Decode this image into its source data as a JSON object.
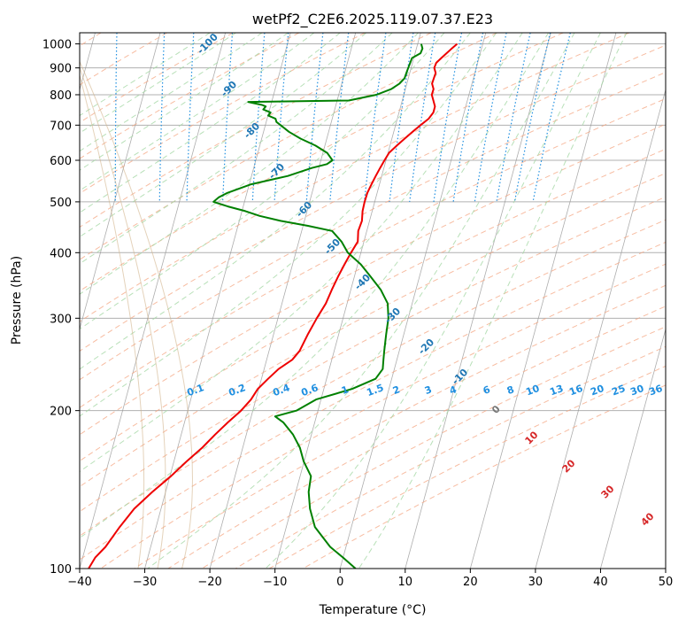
{
  "chart_data": {
    "type": "line",
    "title": "wetPf2_C2E6.2025.119.07.37.E23",
    "xlabel": "Temperature (°C)",
    "ylabel": "Pressure (hPa)",
    "xlim": [
      -40,
      50
    ],
    "ylim": [
      1050,
      100
    ],
    "y_scale": "log",
    "grid": true,
    "x_ticks": [
      -40,
      -30,
      -20,
      -10,
      0,
      10,
      20,
      30,
      40,
      50
    ],
    "y_ticks": [
      100,
      200,
      300,
      400,
      500,
      600,
      700,
      800,
      900,
      1000
    ],
    "series": [
      {
        "color": "#ee0000",
        "pressure": [
          1000,
          980,
          960,
          940,
          920,
          900,
          880,
          860,
          840,
          820,
          800,
          780,
          760,
          740,
          720,
          700,
          680,
          660,
          640,
          620,
          600,
          580,
          560,
          540,
          520,
          500,
          480,
          460,
          440,
          420,
          400,
          380,
          360,
          340,
          320,
          300,
          280,
          260,
          250,
          240,
          230,
          220,
          210,
          200,
          190,
          180,
          170,
          160,
          150,
          140,
          130,
          120,
          110,
          105,
          100
        ],
        "temperature": [
          17.5,
          16.5,
          15.5,
          14.5,
          13.5,
          13.0,
          13.0,
          12.5,
          12.0,
          12.0,
          11.5,
          11.5,
          11.5,
          11.0,
          10.0,
          8.5,
          7.0,
          5.5,
          4.0,
          2.5,
          1.5,
          0.5,
          -0.5,
          -1.5,
          -2.5,
          -3.3,
          -4.0,
          -4.5,
          -5.5,
          -6.0,
          -7.5,
          -9.0,
          -10.5,
          -12.0,
          -13.5,
          -15.5,
          -17.5,
          -19.5,
          -21.0,
          -23.5,
          -25.5,
          -27.5,
          -29.0,
          -31.0,
          -33.5,
          -36.0,
          -38.5,
          -41.5,
          -44.5,
          -48.0,
          -51.5,
          -54.5,
          -57.5,
          -59.5,
          -61.0
        ]
      },
      {
        "color": "#008000",
        "pressure": [
          1000,
          980,
          960,
          940,
          920,
          900,
          880,
          860,
          840,
          820,
          800,
          780,
          775,
          765,
          760,
          750,
          740,
          730,
          720,
          710,
          700,
          680,
          660,
          640,
          620,
          600,
          590,
          580,
          570,
          560,
          550,
          540,
          520,
          510,
          500,
          490,
          480,
          470,
          460,
          450,
          440,
          420,
          400,
          380,
          360,
          340,
          320,
          300,
          280,
          260,
          250,
          240,
          230,
          220,
          210,
          200,
          195,
          190,
          180,
          170,
          160,
          150,
          140,
          130,
          120,
          110,
          105,
          100
        ],
        "temperature": [
          12.0,
          12.0,
          11.5,
          10.0,
          9.5,
          9.0,
          8.5,
          8.0,
          7.0,
          5.5,
          3.0,
          -1.5,
          -17.0,
          -15.0,
          -14.5,
          -15.0,
          -14.0,
          -14.5,
          -13.5,
          -13.5,
          -13.0,
          -12.0,
          -10.5,
          -8.5,
          -7.0,
          -6.5,
          -7.5,
          -10.0,
          -12.0,
          -14.0,
          -17.0,
          -20.0,
          -24.0,
          -25.5,
          -26.5,
          -24.5,
          -22.0,
          -20.0,
          -17.0,
          -13.0,
          -9.5,
          -8.5,
          -8.0,
          -6.5,
          -5.5,
          -4.5,
          -4.0,
          -4.5,
          -5.5,
          -6.5,
          -7.0,
          -7.5,
          -9.0,
          -13.0,
          -19.0,
          -22.5,
          -26.0,
          -25.0,
          -24.0,
          -23.5,
          -23.5,
          -23.0,
          -24.0,
          -24.5,
          -24.5,
          -23.0,
          -21.5,
          -20.0
        ]
      }
    ],
    "dry_adiabats": [
      -100,
      -90,
      -80,
      -70,
      -60,
      -50,
      -40,
      -30,
      -20,
      -10,
      0,
      10,
      20,
      30,
      40
    ],
    "dry_adiabat_labels": [
      "-100",
      "-90",
      "-80",
      "-70",
      "-60",
      "-50",
      "-40",
      "-30",
      "-20",
      "-10"
    ],
    "moist_adiabat_labels": [
      "0",
      "10",
      "20",
      "30",
      "40"
    ],
    "mixing_ratios": [
      0.1,
      0.2,
      0.4,
      0.6,
      1,
      1.5,
      2,
      3,
      4,
      6,
      8,
      10,
      13,
      16,
      20,
      25,
      30,
      36
    ],
    "mixing_ratio_labels": [
      "0.1",
      "0.2",
      "0.4",
      "0.6",
      "1",
      "1.5",
      "2",
      "3",
      "4",
      "6",
      "8",
      "10",
      "13",
      "16",
      "20",
      "25",
      "30",
      "36"
    ],
    "colors": {
      "dry_adiabat": "#f4a582",
      "moist_adiabat": "#a6d8a6",
      "mixing_ratio": "#1f8fe0",
      "isotherm_skewed": "#999999",
      "dry_label": "#1f77b4",
      "moist_label": "#d62728",
      "mixing_label": "#1f8fe0"
    }
  }
}
